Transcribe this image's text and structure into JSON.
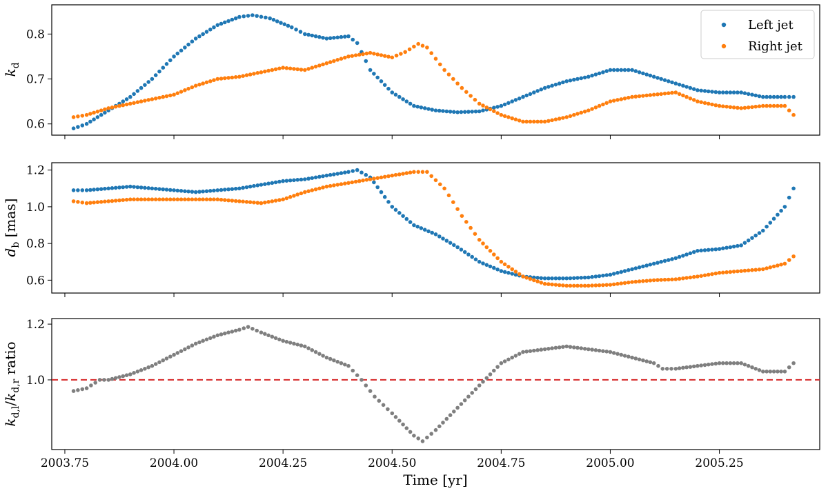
{
  "colors": {
    "left": "#1f77b4",
    "right": "#ff7f0e",
    "ratio": "#7f7f7f",
    "reference": "#d62728"
  },
  "chart_data": [
    {
      "type": "scatter",
      "ylabel": "k_d",
      "xlim": [
        2003.72,
        2005.48
      ],
      "ylim": [
        0.575,
        0.865
      ],
      "yticks": [
        0.6,
        0.7,
        0.8
      ],
      "grid": false,
      "legend": {
        "placement": "top-right",
        "entries": [
          "Left jet",
          "Right jet"
        ]
      },
      "series": [
        {
          "name": "Left jet",
          "color": "#1f77b4",
          "x": [
            2003.77,
            2003.8,
            2003.85,
            2003.9,
            2003.95,
            2004.0,
            2004.05,
            2004.1,
            2004.15,
            2004.18,
            2004.22,
            2004.27,
            2004.3,
            2004.35,
            2004.4,
            2004.42,
            2004.45,
            2004.5,
            2004.55,
            2004.6,
            2004.65,
            2004.7,
            2004.75,
            2004.8,
            2004.85,
            2004.9,
            2004.95,
            2005.0,
            2005.05,
            2005.1,
            2005.15,
            2005.2,
            2005.25,
            2005.3,
            2005.35,
            2005.4,
            2005.42
          ],
          "y": [
            0.59,
            0.6,
            0.63,
            0.66,
            0.7,
            0.75,
            0.79,
            0.82,
            0.838,
            0.842,
            0.835,
            0.815,
            0.8,
            0.79,
            0.795,
            0.78,
            0.72,
            0.67,
            0.64,
            0.63,
            0.626,
            0.628,
            0.64,
            0.66,
            0.68,
            0.695,
            0.705,
            0.72,
            0.72,
            0.705,
            0.69,
            0.675,
            0.67,
            0.67,
            0.66,
            0.66,
            0.66
          ]
        },
        {
          "name": "Right jet",
          "color": "#ff7f0e",
          "x": [
            2003.77,
            2003.8,
            2003.85,
            2003.9,
            2003.95,
            2004.0,
            2004.05,
            2004.1,
            2004.15,
            2004.2,
            2004.25,
            2004.3,
            2004.35,
            2004.4,
            2004.45,
            2004.5,
            2004.53,
            2004.56,
            2004.58,
            2004.62,
            2004.66,
            2004.7,
            2004.75,
            2004.8,
            2004.85,
            2004.9,
            2004.95,
            2005.0,
            2005.05,
            2005.1,
            2005.15,
            2005.2,
            2005.25,
            2005.3,
            2005.35,
            2005.4,
            2005.42
          ],
          "y": [
            0.615,
            0.62,
            0.635,
            0.645,
            0.655,
            0.665,
            0.685,
            0.7,
            0.705,
            0.715,
            0.725,
            0.72,
            0.735,
            0.75,
            0.758,
            0.748,
            0.76,
            0.778,
            0.77,
            0.72,
            0.68,
            0.645,
            0.62,
            0.605,
            0.605,
            0.615,
            0.63,
            0.65,
            0.66,
            0.665,
            0.67,
            0.65,
            0.64,
            0.635,
            0.64,
            0.64,
            0.62
          ]
        }
      ]
    },
    {
      "type": "scatter",
      "ylabel": "d_b [mas]",
      "xlim": [
        2003.72,
        2005.48
      ],
      "ylim": [
        0.53,
        1.24
      ],
      "yticks": [
        0.6,
        0.8,
        1.0,
        1.2
      ],
      "grid": false,
      "series": [
        {
          "name": "Left jet",
          "color": "#1f77b4",
          "x": [
            2003.77,
            2003.8,
            2003.85,
            2003.9,
            2003.95,
            2004.0,
            2004.05,
            2004.1,
            2004.15,
            2004.2,
            2004.25,
            2004.3,
            2004.35,
            2004.4,
            2004.42,
            2004.45,
            2004.5,
            2004.55,
            2004.6,
            2004.65,
            2004.7,
            2004.75,
            2004.8,
            2004.85,
            2004.9,
            2004.95,
            2005.0,
            2005.05,
            2005.1,
            2005.15,
            2005.2,
            2005.25,
            2005.3,
            2005.35,
            2005.4,
            2005.42
          ],
          "y": [
            1.09,
            1.09,
            1.1,
            1.11,
            1.1,
            1.09,
            1.08,
            1.09,
            1.1,
            1.12,
            1.14,
            1.15,
            1.17,
            1.19,
            1.2,
            1.16,
            1.0,
            0.9,
            0.85,
            0.78,
            0.7,
            0.65,
            0.62,
            0.61,
            0.61,
            0.615,
            0.63,
            0.66,
            0.69,
            0.72,
            0.76,
            0.77,
            0.79,
            0.87,
            1.0,
            1.1
          ]
        },
        {
          "name": "Right jet",
          "color": "#ff7f0e",
          "x": [
            2003.77,
            2003.8,
            2003.85,
            2003.9,
            2003.95,
            2004.0,
            2004.05,
            2004.1,
            2004.15,
            2004.2,
            2004.25,
            2004.3,
            2004.35,
            2004.4,
            2004.45,
            2004.5,
            2004.55,
            2004.58,
            2004.62,
            2004.66,
            2004.7,
            2004.75,
            2004.8,
            2004.85,
            2004.9,
            2004.95,
            2005.0,
            2005.05,
            2005.1,
            2005.15,
            2005.2,
            2005.25,
            2005.3,
            2005.35,
            2005.4,
            2005.42
          ],
          "y": [
            1.03,
            1.02,
            1.03,
            1.04,
            1.04,
            1.04,
            1.04,
            1.04,
            1.03,
            1.02,
            1.04,
            1.08,
            1.11,
            1.13,
            1.15,
            1.17,
            1.19,
            1.19,
            1.1,
            0.95,
            0.82,
            0.7,
            0.62,
            0.58,
            0.57,
            0.57,
            0.575,
            0.59,
            0.6,
            0.605,
            0.62,
            0.64,
            0.65,
            0.66,
            0.69,
            0.73
          ]
        }
      ]
    },
    {
      "type": "scatter",
      "ylabel": "k_d,l/k_d,r ratio",
      "xlabel": "Time [yr]",
      "xlim": [
        2003.72,
        2005.48
      ],
      "ylim": [
        0.75,
        1.22
      ],
      "yticks": [
        1.0,
        1.2
      ],
      "xticks": [
        2003.75,
        2004.0,
        2004.25,
        2004.5,
        2004.75,
        2005.0,
        2005.25
      ],
      "xtick_labels": [
        "2003.75",
        "2004.00",
        "2004.25",
        "2004.50",
        "2004.75",
        "2005.00",
        "2005.25"
      ],
      "grid": false,
      "reference_line": {
        "y": 1.0,
        "style": "dashed",
        "color": "#d62728"
      },
      "series": [
        {
          "color": "#7f7f7f",
          "x": [
            2003.77,
            2003.8,
            2003.83,
            2003.85,
            2003.9,
            2003.95,
            2004.0,
            2004.05,
            2004.1,
            2004.15,
            2004.17,
            2004.2,
            2004.25,
            2004.3,
            2004.35,
            2004.4,
            2004.43,
            2004.46,
            2004.5,
            2004.55,
            2004.57,
            2004.6,
            2004.65,
            2004.7,
            2004.75,
            2004.8,
            2004.85,
            2004.9,
            2004.95,
            2005.0,
            2005.05,
            2005.1,
            2005.12,
            2005.15,
            2005.2,
            2005.25,
            2005.3,
            2005.35,
            2005.4,
            2005.42
          ],
          "y": [
            0.96,
            0.97,
            1.0,
            1.0,
            1.02,
            1.05,
            1.09,
            1.13,
            1.16,
            1.18,
            1.19,
            1.17,
            1.14,
            1.12,
            1.08,
            1.05,
            1.0,
            0.94,
            0.88,
            0.8,
            0.78,
            0.82,
            0.9,
            0.98,
            1.06,
            1.1,
            1.11,
            1.12,
            1.11,
            1.1,
            1.08,
            1.06,
            1.04,
            1.04,
            1.05,
            1.06,
            1.06,
            1.03,
            1.03,
            1.06
          ]
        }
      ]
    }
  ]
}
